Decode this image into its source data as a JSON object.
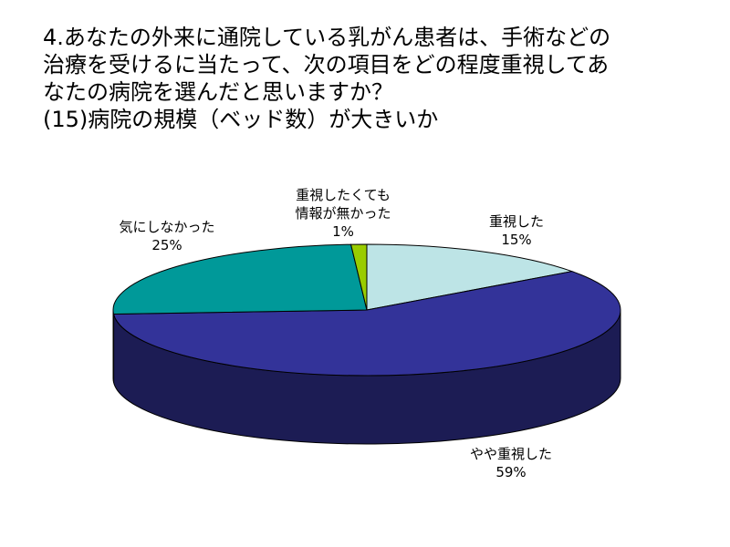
{
  "title_lines": [
    "4.あなたの外来に通院している乳がん患者は、手術などの",
    "治療を受けるに当たって、次の項目をどの程度重視してあ",
    "なたの病院を選んだと思いますか？",
    "(15)病院の規模（ベッド数）が大きいか"
  ],
  "chart_data": {
    "type": "pie",
    "style": "3d",
    "slices": [
      {
        "label": "重視した",
        "value": 15,
        "value_text": "15%",
        "color": "#BDE4E6"
      },
      {
        "label": "やや重視した",
        "value": 59,
        "value_text": "59%",
        "color": "#333399"
      },
      {
        "label": "気にしなかった",
        "value": 25,
        "value_text": "25%",
        "color": "#009999"
      },
      {
        "label": "重視したくても情報が無かった",
        "value": 1,
        "value_text": "1%",
        "color": "#99CC00"
      }
    ]
  }
}
